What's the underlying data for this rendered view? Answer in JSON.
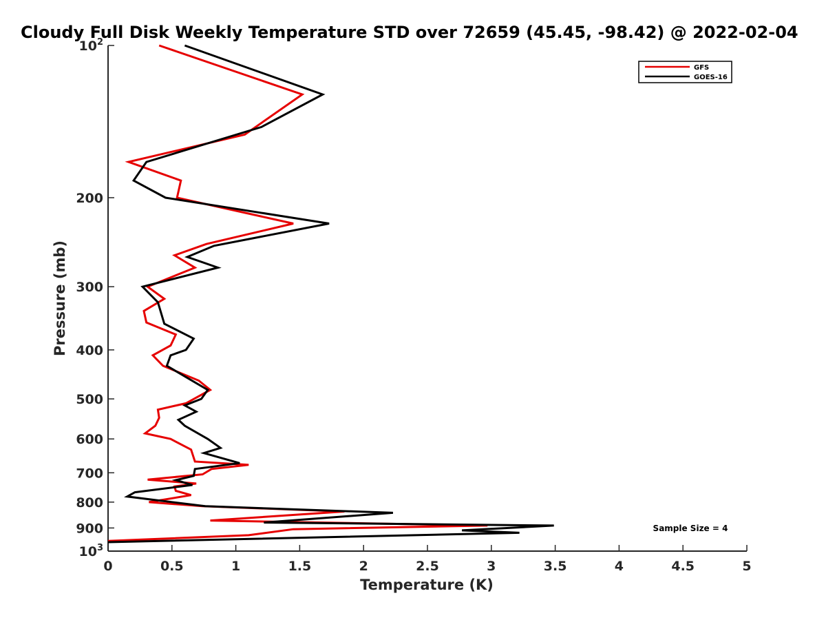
{
  "chart_data": {
    "type": "line",
    "title": "Cloudy Full Disk Weekly Temperature STD over 72659 (45.45, -98.42) @ 2022-02-04",
    "xlabel": "Temperature (K)",
    "ylabel": "Pressure (mb)",
    "xlim": [
      0,
      5
    ],
    "ylim": [
      100,
      1000
    ],
    "y_scale": "log",
    "y_reversed": true,
    "grid": false,
    "legend_position": "top-right",
    "x_ticks": [
      {
        "value": 0,
        "label": "0"
      },
      {
        "value": 0.5,
        "label": "0.5"
      },
      {
        "value": 1,
        "label": "1"
      },
      {
        "value": 1.5,
        "label": "1.5"
      },
      {
        "value": 2,
        "label": "2"
      },
      {
        "value": 2.5,
        "label": "2.5"
      },
      {
        "value": 3,
        "label": "3"
      },
      {
        "value": 3.5,
        "label": "3.5"
      },
      {
        "value": 4,
        "label": "4"
      },
      {
        "value": 4.5,
        "label": "4.5"
      },
      {
        "value": 5,
        "label": "5"
      }
    ],
    "y_ticks": [
      {
        "value": 100,
        "label": "10",
        "sup": "2"
      },
      {
        "value": 200,
        "label": "200"
      },
      {
        "value": 300,
        "label": "300"
      },
      {
        "value": 400,
        "label": "400"
      },
      {
        "value": 500,
        "label": "500"
      },
      {
        "value": 600,
        "label": "600"
      },
      {
        "value": 700,
        "label": "700"
      },
      {
        "value": 800,
        "label": "800"
      },
      {
        "value": 900,
        "label": "900"
      },
      {
        "value": 1000,
        "label": "10",
        "sup": "3"
      }
    ],
    "annotation": "Sample Size = 4",
    "series": [
      {
        "name": "GFS",
        "color": "#e60000",
        "points": [
          [
            0.4,
            100
          ],
          [
            1.52,
            125
          ],
          [
            1.07,
            150
          ],
          [
            0.16,
            170
          ],
          [
            0.57,
            185
          ],
          [
            0.54,
            200
          ],
          [
            1.45,
            225
          ],
          [
            0.77,
            247
          ],
          [
            0.52,
            260
          ],
          [
            0.68,
            275
          ],
          [
            0.31,
            300
          ],
          [
            0.44,
            317
          ],
          [
            0.28,
            335
          ],
          [
            0.3,
            353
          ],
          [
            0.53,
            373
          ],
          [
            0.49,
            392
          ],
          [
            0.35,
            410
          ],
          [
            0.43,
            430
          ],
          [
            0.71,
            460
          ],
          [
            0.8,
            480
          ],
          [
            0.61,
            510
          ],
          [
            0.39,
            525
          ],
          [
            0.4,
            545
          ],
          [
            0.37,
            565
          ],
          [
            0.29,
            585
          ],
          [
            0.49,
            600
          ],
          [
            0.65,
            630
          ],
          [
            0.68,
            665
          ],
          [
            1.1,
            675
          ],
          [
            0.81,
            688
          ],
          [
            0.74,
            705
          ],
          [
            0.31,
            722
          ],
          [
            0.69,
            735
          ],
          [
            0.52,
            745
          ],
          [
            0.53,
            760
          ],
          [
            0.65,
            775
          ],
          [
            0.32,
            800
          ],
          [
            0.74,
            815
          ],
          [
            1.85,
            835
          ],
          [
            0.8,
            870
          ],
          [
            2.97,
            890
          ],
          [
            1.45,
            905
          ],
          [
            1.1,
            930
          ],
          [
            0,
            955
          ]
        ]
      },
      {
        "name": "GOES-16",
        "color": "#000000",
        "points": [
          [
            0.6,
            100
          ],
          [
            1.68,
            125
          ],
          [
            1.2,
            145
          ],
          [
            0.3,
            170
          ],
          [
            0.2,
            185
          ],
          [
            0.45,
            200
          ],
          [
            1.73,
            225
          ],
          [
            0.83,
            249
          ],
          [
            0.62,
            262
          ],
          [
            0.86,
            275
          ],
          [
            0.27,
            300
          ],
          [
            0.39,
            322
          ],
          [
            0.44,
            355
          ],
          [
            0.67,
            380
          ],
          [
            0.61,
            400
          ],
          [
            0.49,
            410
          ],
          [
            0.46,
            430
          ],
          [
            0.78,
            480
          ],
          [
            0.73,
            500
          ],
          [
            0.6,
            515
          ],
          [
            0.69,
            530
          ],
          [
            0.55,
            550
          ],
          [
            0.6,
            565
          ],
          [
            0.78,
            600
          ],
          [
            0.88,
            625
          ],
          [
            0.75,
            640
          ],
          [
            1.03,
            670
          ],
          [
            0.68,
            688
          ],
          [
            0.67,
            710
          ],
          [
            0.53,
            724
          ],
          [
            0.66,
            740
          ],
          [
            0.21,
            765
          ],
          [
            0.15,
            780
          ],
          [
            0.76,
            815
          ],
          [
            2.23,
            840
          ],
          [
            1.22,
            878
          ],
          [
            3.49,
            890
          ],
          [
            2.77,
            910
          ],
          [
            3.22,
            920
          ],
          [
            0,
            960
          ]
        ]
      }
    ]
  },
  "legend": {
    "entries": [
      {
        "label": "GFS",
        "color": "#e60000"
      },
      {
        "label": "GOES-16",
        "color": "#000000"
      }
    ]
  }
}
